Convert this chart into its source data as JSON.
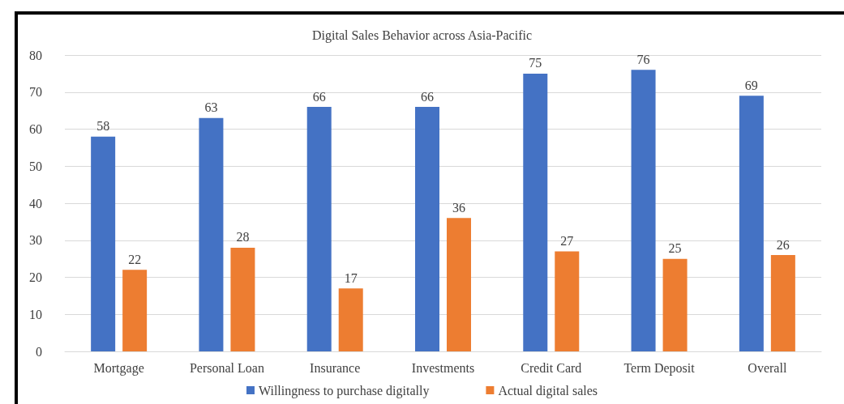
{
  "chart_data": {
    "type": "bar",
    "title": "Digital Sales Behavior across Asia-Pacific",
    "categories": [
      "Mortgage",
      "Personal Loan",
      "Insurance",
      "Investments",
      "Credit Card",
      "Term Deposit",
      "Overall"
    ],
    "series": [
      {
        "name": "Willingness to purchase digitally",
        "color": "#4472c4",
        "values": [
          58,
          63,
          66,
          66,
          75,
          76,
          69
        ]
      },
      {
        "name": "Actual digital sales",
        "color": "#ed7d31",
        "values": [
          22,
          28,
          17,
          36,
          27,
          25,
          26
        ]
      }
    ],
    "ylim": [
      0,
      80
    ],
    "yticks": [
      0,
      10,
      20,
      30,
      40,
      50,
      60,
      70,
      80
    ],
    "grid": "y",
    "legend": "bottom",
    "data_labels": true
  }
}
